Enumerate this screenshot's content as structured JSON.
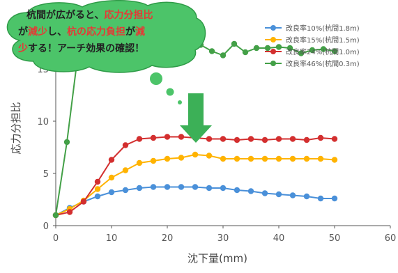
{
  "chart_data": {
    "type": "line",
    "xlabel": "沈下量(mm)",
    "ylabel": "応力分担比",
    "xlim": [
      0,
      60
    ],
    "ylim": [
      0,
      20
    ],
    "xticks": [
      "0",
      "10",
      "20",
      "30",
      "40",
      "50",
      "60"
    ],
    "yticks": [
      "0",
      "5",
      "10",
      "15"
    ],
    "grid": false,
    "legend_position": "top-right",
    "series": [
      {
        "name": "改良率10%(杭間1.8m)",
        "color": "#4a90d9",
        "x": [
          0,
          2.5,
          5,
          7.5,
          10,
          12.5,
          15,
          17.5,
          20,
          22.5,
          25,
          27.5,
          30,
          32.5,
          35,
          37.5,
          40,
          42.5,
          45,
          47.5,
          50
        ],
        "y": [
          1.0,
          1.7,
          2.3,
          2.8,
          3.2,
          3.4,
          3.6,
          3.7,
          3.7,
          3.7,
          3.7,
          3.6,
          3.6,
          3.4,
          3.3,
          3.1,
          3.0,
          2.9,
          2.8,
          2.6,
          2.6
        ]
      },
      {
        "name": "改良率15%(杭間1.5m)",
        "color": "#ffb300",
        "x": [
          0,
          2.5,
          5,
          7.5,
          10,
          12.5,
          15,
          17.5,
          20,
          22.5,
          25,
          27.5,
          30,
          32.5,
          35,
          37.5,
          40,
          42.5,
          45,
          47.5,
          50
        ],
        "y": [
          1.0,
          1.6,
          2.4,
          3.5,
          4.6,
          5.3,
          6.0,
          6.2,
          6.4,
          6.5,
          6.8,
          6.7,
          6.4,
          6.4,
          6.4,
          6.4,
          6.4,
          6.4,
          6.4,
          6.4,
          6.3
        ]
      },
      {
        "name": "改良率24%(杭間1.0m)",
        "color": "#d32f2f",
        "x": [
          0,
          2.5,
          5,
          7.5,
          10,
          12.5,
          15,
          17.5,
          20,
          22.5,
          25,
          27.5,
          30,
          32.5,
          35,
          37.5,
          40,
          42.5,
          45,
          47.5,
          50
        ],
        "y": [
          1.0,
          1.3,
          2.3,
          4.2,
          6.3,
          7.7,
          8.3,
          8.4,
          8.5,
          8.5,
          8.4,
          8.3,
          8.3,
          8.2,
          8.3,
          8.2,
          8.3,
          8.3,
          8.2,
          8.4,
          8.3
        ]
      },
      {
        "name": "改良率46%(杭間0.3m)",
        "color": "#43a047",
        "x": [
          0,
          2,
          4,
          6,
          8,
          10,
          12,
          14,
          16,
          18,
          20,
          22,
          24,
          26,
          28,
          30,
          32,
          34,
          36,
          38,
          40,
          42,
          44,
          46,
          48,
          50
        ],
        "y": [
          1.0,
          8.0,
          16.5,
          16.8,
          16.7,
          16.4,
          17.0,
          17.2,
          16.4,
          17.3,
          16.8,
          17.1,
          17.6,
          17.3,
          16.7,
          16.3,
          17.4,
          16.6,
          17.0,
          17.0,
          17.1,
          17.0,
          16.5,
          16.8,
          16.9,
          16.7
        ]
      }
    ]
  },
  "callout": {
    "lines": [
      [
        {
          "text": "杭間が広がると、",
          "red": false
        },
        {
          "text": "応力分担比",
          "red": true
        }
      ],
      [
        {
          "text": "が",
          "red": false
        },
        {
          "text": "減少",
          "red": true
        },
        {
          "text": "し、",
          "red": false
        },
        {
          "text": "杭の応力負担",
          "red": true
        },
        {
          "text": "が",
          "red": false
        },
        {
          "text": "減",
          "red": true
        }
      ],
      [
        {
          "text": "少",
          "red": true
        },
        {
          "text": "する！アーチ効果の確認！",
          "red": false
        }
      ]
    ]
  },
  "colors": {
    "bubble_fill": "#4cc469",
    "bubble_stroke": "#2e9b47",
    "arrow": "#3cb057",
    "axis": "#555555"
  }
}
